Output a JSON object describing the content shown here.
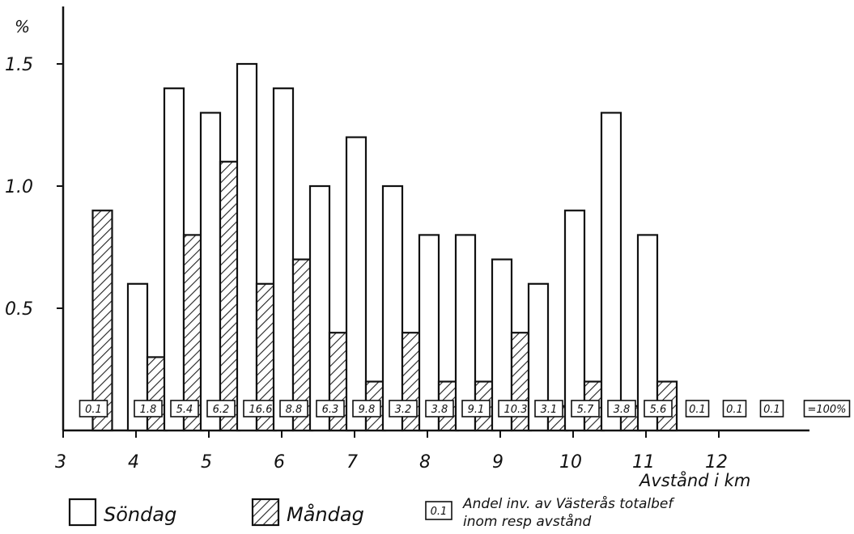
{
  "chart_data": {
    "type": "bar",
    "ylabel": "%",
    "xlabel": "Avstånd i km",
    "ylim": [
      0,
      1.7
    ],
    "y_ticks": [
      {
        "value": 0.5,
        "label": "0.5"
      },
      {
        "value": 1.0,
        "label": "1.0"
      },
      {
        "value": 1.5,
        "label": "1.5"
      }
    ],
    "x_ticks": [
      "3",
      "4",
      "5",
      "6",
      "7",
      "8",
      "9",
      "10",
      "11",
      "12"
    ],
    "x_tick_values": [
      3,
      4,
      5,
      6,
      7,
      8,
      9,
      10,
      11,
      12
    ],
    "x_range": [
      3,
      13
    ],
    "grid": false,
    "series": [
      {
        "name": "Söndag",
        "style": "open",
        "values": [
          0.0,
          0.6,
          1.4,
          1.3,
          1.5,
          1.4,
          1.0,
          1.2,
          1.0,
          0.8,
          0.8,
          0.7,
          0.6,
          0.9,
          1.3,
          0.8
        ]
      },
      {
        "name": "Måndag",
        "style": "hatched",
        "values": [
          0.9,
          0.3,
          0.8,
          1.1,
          0.6,
          0.7,
          0.4,
          0.2,
          0.4,
          0.2,
          0.2,
          0.4,
          0.1,
          0.2,
          0.1,
          0.2
        ]
      }
    ],
    "interval_start_km": [
      3.25,
      4.0,
      4.5,
      5.0,
      5.5,
      6.0,
      6.5,
      7.0,
      7.5,
      8.0,
      8.5,
      9.0,
      9.5,
      10.0,
      10.5,
      11.0
    ],
    "share_labels": [
      "0.1",
      "1.8",
      "5.4",
      "6.2",
      "16.6",
      "8.8",
      "6.3",
      "9.8",
      "3.2",
      "3.8",
      "9.1",
      "10.3",
      "3.1",
      "5.7",
      "3.8",
      "5.6"
    ],
    "trailing_share_labels": [
      "0.1",
      "0.1",
      "0.1"
    ],
    "total_label": "=100%",
    "legend": [
      {
        "style": "open",
        "label": "Söndag"
      },
      {
        "style": "hatched",
        "label": "Måndag"
      },
      {
        "style": "box",
        "box_label": "0.1",
        "label_lines": [
          "Andel inv. av Västerås totalbef",
          "inom resp avstånd"
        ]
      }
    ],
    "legend_position": "bottom"
  }
}
